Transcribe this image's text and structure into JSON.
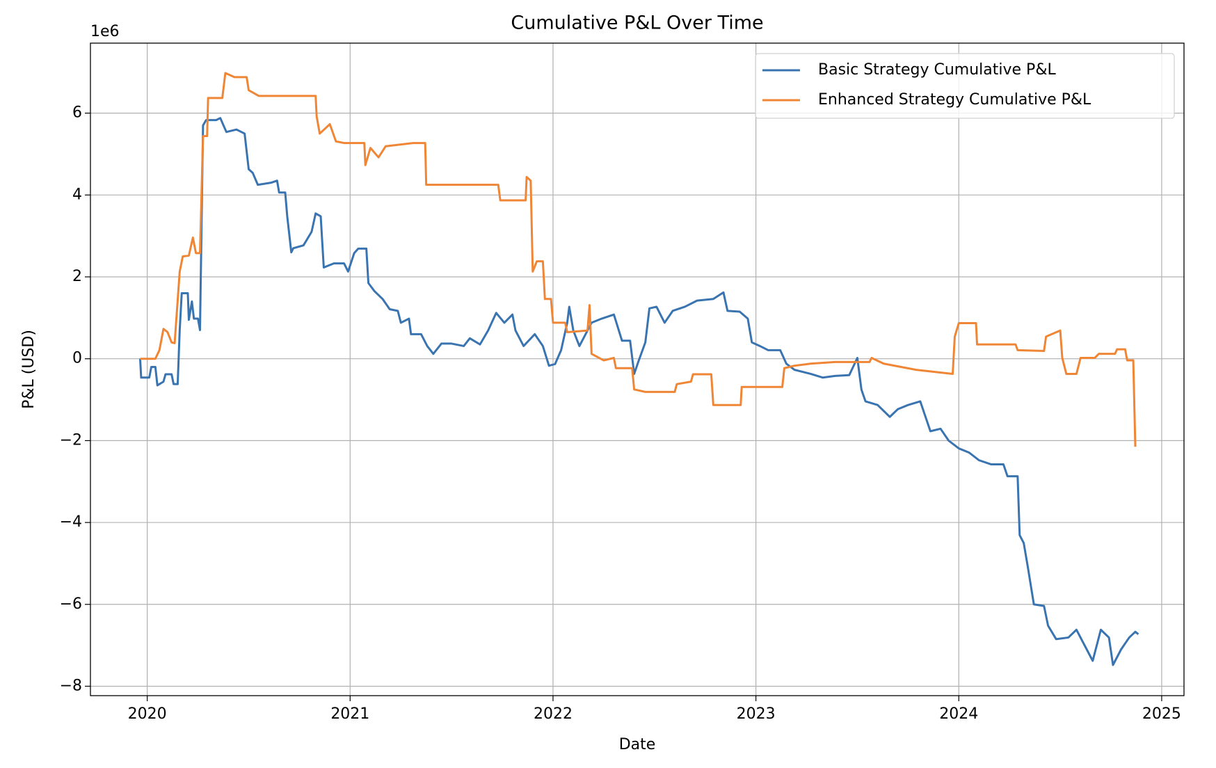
{
  "chart_data": {
    "type": "line",
    "title": "Cumulative P&L Over Time",
    "x_label": "Date",
    "y_label": "P&L (USD)",
    "y_offset_text": "1e6",
    "xlim": [
      2019.72,
      2025.11
    ],
    "xticks": [
      2020,
      2021,
      2022,
      2023,
      2024,
      2025
    ],
    "ylim": [
      -8230000,
      7710000
    ],
    "yticks": [
      {
        "value": -8000000,
        "label": "−8"
      },
      {
        "value": -6000000,
        "label": "−6"
      },
      {
        "value": -4000000,
        "label": "−4"
      },
      {
        "value": -2000000,
        "label": "−2"
      },
      0,
      {
        "value": 2000000,
        "label": "2"
      },
      {
        "value": 4000000,
        "label": "4"
      },
      {
        "value": 6000000,
        "label": "6"
      }
    ],
    "grid": true,
    "legend": "upper right",
    "series": [
      {
        "name": "Basic Strategy Cumulative P&L",
        "color": "#3a74b0",
        "x": [
          2019.965,
          2019.97,
          2020.01,
          2020.02,
          2020.04,
          2020.05,
          2020.08,
          2020.09,
          2020.12,
          2020.13,
          2020.15,
          2020.16,
          2020.17,
          2020.2,
          2020.205,
          2020.22,
          2020.23,
          2020.25,
          2020.26,
          2020.275,
          2020.29,
          2020.34,
          2020.36,
          2020.39,
          2020.44,
          2020.48,
          2020.5,
          2020.52,
          2020.545,
          2020.61,
          2020.64,
          2020.65,
          2020.68,
          2020.69,
          2020.71,
          2020.72,
          2020.77,
          2020.81,
          2020.83,
          2020.855,
          2020.87,
          2020.92,
          2020.97,
          2020.99,
          2021.02,
          2021.04,
          2021.08,
          2021.09,
          2021.12,
          2021.16,
          2021.195,
          2021.235,
          2021.25,
          2021.29,
          2021.3,
          2021.35,
          2021.38,
          2021.41,
          2021.45,
          2021.5,
          2021.56,
          2021.59,
          2021.64,
          2021.68,
          2021.72,
          2021.76,
          2021.8,
          2021.815,
          2021.855,
          2021.91,
          2021.95,
          2021.98,
          2022.01,
          2022.04,
          2022.07,
          2022.08,
          2022.1,
          2022.13,
          2022.15,
          2022.19,
          2022.24,
          2022.3,
          2022.34,
          2022.38,
          2022.4,
          2022.42,
          2022.455,
          2022.475,
          2022.51,
          2022.55,
          2022.59,
          2022.65,
          2022.71,
          2022.79,
          2022.84,
          2022.86,
          2022.92,
          2022.96,
          2022.98,
          2023.02,
          2023.06,
          2023.12,
          2023.15,
          2023.19,
          2023.27,
          2023.33,
          2023.39,
          2023.46,
          2023.5,
          2023.52,
          2023.54,
          2023.6,
          2023.66,
          2023.7,
          2023.75,
          2023.81,
          2023.86,
          2023.91,
          2023.95,
          2024.0,
          2024.05,
          2024.1,
          2024.16,
          2024.22,
          2024.24,
          2024.29,
          2024.3,
          2024.32,
          2024.34,
          2024.37,
          2024.42,
          2024.44,
          2024.48,
          2024.54,
          2024.58,
          2024.62,
          2024.66,
          2024.7,
          2024.74,
          2024.76,
          2024.8,
          2024.84,
          2024.87,
          2024.885
        ],
        "values": [
          0,
          -460000,
          -460000,
          -200000,
          -200000,
          -650000,
          -560000,
          -380000,
          -380000,
          -620000,
          -620000,
          700000,
          1600000,
          1600000,
          950000,
          1400000,
          980000,
          980000,
          700000,
          5700000,
          5830000,
          5830000,
          5880000,
          5540000,
          5600000,
          5500000,
          4630000,
          4540000,
          4250000,
          4300000,
          4350000,
          4060000,
          4060000,
          3480000,
          2600000,
          2700000,
          2770000,
          3100000,
          3550000,
          3480000,
          2230000,
          2330000,
          2330000,
          2130000,
          2580000,
          2690000,
          2690000,
          1850000,
          1650000,
          1460000,
          1210000,
          1170000,
          880000,
          980000,
          600000,
          600000,
          310000,
          120000,
          370000,
          370000,
          310000,
          500000,
          350000,
          690000,
          1120000,
          880000,
          1080000,
          690000,
          310000,
          600000,
          310000,
          -170000,
          -130000,
          210000,
          880000,
          1270000,
          690000,
          310000,
          500000,
          880000,
          980000,
          1080000,
          440000,
          440000,
          -370000,
          -80000,
          400000,
          1230000,
          1270000,
          880000,
          1170000,
          1270000,
          1420000,
          1460000,
          1620000,
          1170000,
          1150000,
          980000,
          400000,
          310000,
          210000,
          210000,
          -120000,
          -270000,
          -370000,
          -460000,
          -420000,
          -400000,
          20000,
          -750000,
          -1040000,
          -1130000,
          -1420000,
          -1230000,
          -1130000,
          -1040000,
          -1770000,
          -1710000,
          -2000000,
          -2190000,
          -2290000,
          -2480000,
          -2580000,
          -2580000,
          -2870000,
          -2870000,
          -4310000,
          -4500000,
          -5080000,
          -6000000,
          -6040000,
          -6520000,
          -6850000,
          -6810000,
          -6620000,
          -7000000,
          -7380000,
          -6620000,
          -6810000,
          -7480000,
          -7100000,
          -6810000,
          -6670000,
          -6730000
        ]
      },
      {
        "name": "Enhanced Strategy Cumulative P&L",
        "color": "#ef8636",
        "x": [
          2019.965,
          2020.04,
          2020.06,
          2020.08,
          2020.1,
          2020.12,
          2020.135,
          2020.16,
          2020.175,
          2020.205,
          2020.225,
          2020.24,
          2020.26,
          2020.275,
          2020.295,
          2020.3,
          2020.37,
          2020.385,
          2020.43,
          2020.49,
          2020.5,
          2020.55,
          2020.83,
          2020.835,
          2020.85,
          2020.9,
          2020.93,
          2020.97,
          2021.07,
          2021.075,
          2021.1,
          2021.14,
          2021.175,
          2021.31,
          2021.37,
          2021.375,
          2021.73,
          2021.74,
          2021.865,
          2021.87,
          2021.89,
          2021.9,
          2021.92,
          2021.95,
          2021.96,
          2021.99,
          2022.0,
          2022.06,
          2022.07,
          2022.17,
          2022.18,
          2022.19,
          2022.25,
          2022.3,
          2022.31,
          2022.39,
          2022.4,
          2022.455,
          2022.6,
          2022.61,
          2022.68,
          2022.69,
          2022.78,
          2022.79,
          2022.925,
          2022.93,
          2023.13,
          2023.14,
          2023.19,
          2023.27,
          2023.39,
          2023.56,
          2023.57,
          2023.63,
          2023.79,
          2023.97,
          2023.98,
          2024.0,
          2024.085,
          2024.09,
          2024.28,
          2024.29,
          2024.42,
          2024.43,
          2024.5,
          2024.51,
          2024.53,
          2024.58,
          2024.6,
          2024.67,
          2024.69,
          2024.77,
          2024.78,
          2024.82,
          2024.83,
          2024.86,
          2024.87
        ],
        "values": [
          0,
          0,
          210000,
          730000,
          650000,
          400000,
          380000,
          2130000,
          2500000,
          2520000,
          2960000,
          2580000,
          2580000,
          5440000,
          5440000,
          6370000,
          6370000,
          6980000,
          6880000,
          6880000,
          6560000,
          6420000,
          6420000,
          5920000,
          5500000,
          5730000,
          5310000,
          5270000,
          5270000,
          4730000,
          5150000,
          4920000,
          5190000,
          5270000,
          5270000,
          4250000,
          4250000,
          3870000,
          3870000,
          4440000,
          4350000,
          2130000,
          2380000,
          2380000,
          1460000,
          1460000,
          880000,
          880000,
          650000,
          690000,
          1310000,
          120000,
          -40000,
          20000,
          -230000,
          -230000,
          -750000,
          -810000,
          -810000,
          -620000,
          -560000,
          -380000,
          -380000,
          -1130000,
          -1130000,
          -690000,
          -690000,
          -230000,
          -170000,
          -120000,
          -80000,
          -80000,
          20000,
          -120000,
          -270000,
          -370000,
          540000,
          870000,
          870000,
          350000,
          350000,
          210000,
          190000,
          540000,
          690000,
          20000,
          -370000,
          -370000,
          20000,
          20000,
          120000,
          120000,
          230000,
          230000,
          -40000,
          -40000,
          -2150000
        ]
      }
    ]
  }
}
